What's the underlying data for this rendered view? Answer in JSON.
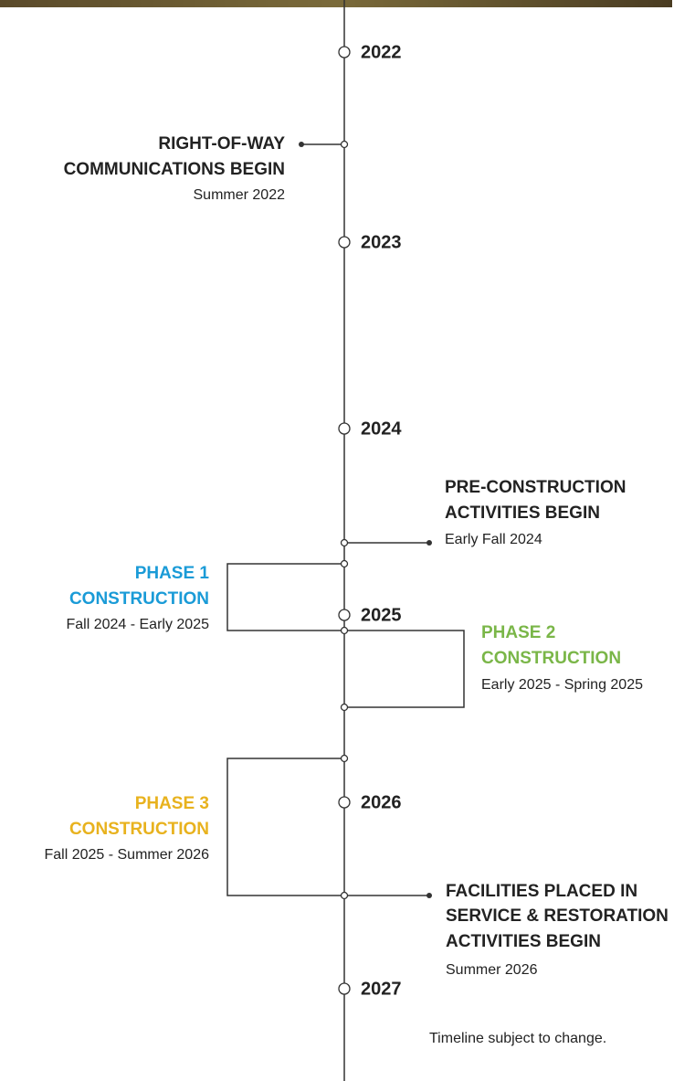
{
  "years": [
    "2022",
    "2023",
    "2024",
    "2025",
    "2026",
    "2027"
  ],
  "events": [
    {
      "title": [
        "RIGHT-OF-WAY",
        "COMMUNICATIONS BEGIN"
      ],
      "date": "Summer 2022"
    },
    {
      "title": [
        "PRE-CONSTRUCTION",
        "ACTIVITIES BEGIN"
      ],
      "date": "Early Fall 2024"
    },
    {
      "title": [
        "PHASE 1",
        "CONSTRUCTION"
      ],
      "date": "Fall 2024 - Early 2025"
    },
    {
      "title": [
        "PHASE 2",
        "CONSTRUCTION"
      ],
      "date": "Early 2025 - Spring 2025"
    },
    {
      "title": [
        "PHASE 3",
        "CONSTRUCTION"
      ],
      "date": "Fall 2025 - Summer 2026"
    },
    {
      "title": [
        "FACILITIES PLACED IN",
        "SERVICE & RESTORATION",
        "ACTIVITIES BEGIN"
      ],
      "date": "Summer 2026"
    }
  ],
  "note": "Timeline subject to change."
}
